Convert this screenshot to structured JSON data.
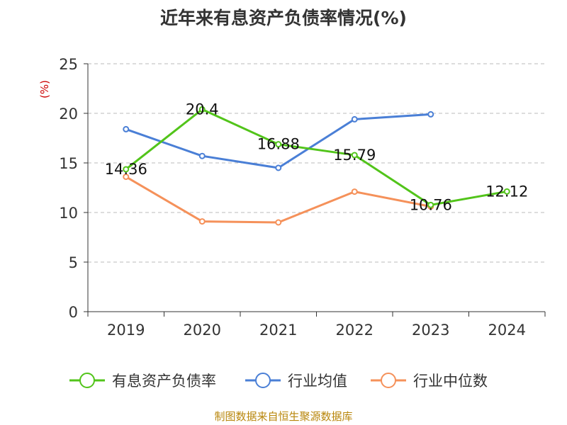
{
  "chart_data": {
    "type": "line",
    "title": "近年来有息资产负债率情况(%)",
    "y_unit": "(%)",
    "categories": [
      "2019",
      "2020",
      "2021",
      "2022",
      "2023",
      "2024"
    ],
    "ylim": [
      0,
      25
    ],
    "y_ticks": [
      "0",
      "5",
      "10",
      "15",
      "20",
      "25"
    ],
    "grid": "dashed horizontal",
    "legend_position": "bottom-center",
    "series": [
      {
        "name": "有息资产负债率",
        "color": "#52c41a",
        "values": [
          14.36,
          20.4,
          16.88,
          15.79,
          10.76,
          12.12
        ],
        "labels": [
          "14.36",
          "20.4",
          "16.88",
          "15.79",
          "10.76",
          "12.12"
        ]
      },
      {
        "name": "行业均值",
        "color": "#4a7fd6",
        "values": [
          18.4,
          15.7,
          14.5,
          19.4,
          19.9,
          null
        ]
      },
      {
        "name": "行业中位数",
        "color": "#f5915a",
        "values": [
          13.6,
          9.1,
          9.0,
          12.1,
          10.6,
          null
        ]
      }
    ]
  },
  "footer": {
    "source": "制图数据来自恒生聚源数据库"
  }
}
